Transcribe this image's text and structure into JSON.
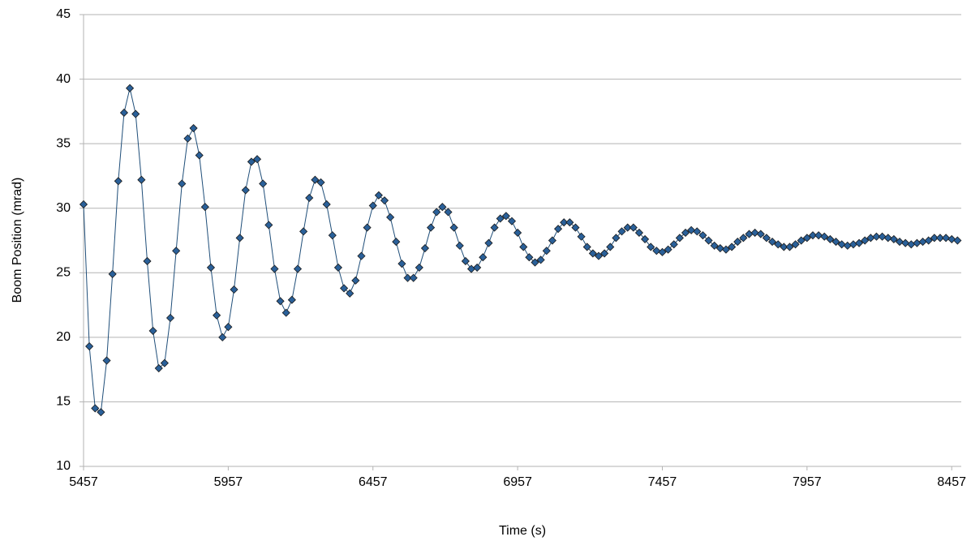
{
  "chart_data": {
    "type": "line",
    "x_label": "Time (s)",
    "y_label": "Boom Position (mrad)",
    "color": "#2a6099",
    "x": [
      5457,
      5477,
      5497,
      5517,
      5537,
      5557,
      5577,
      5597,
      5617,
      5637,
      5657,
      5677,
      5697,
      5717,
      5737,
      5757,
      5777,
      5797,
      5817,
      5837,
      5857,
      5877,
      5897,
      5917,
      5937,
      5957,
      5977,
      5997,
      6017,
      6037,
      6057,
      6077,
      6097,
      6117,
      6137,
      6157,
      6177,
      6197,
      6217,
      6237,
      6257,
      6277,
      6297,
      6317,
      6337,
      6357,
      6377,
      6397,
      6417,
      6437,
      6457,
      6477,
      6497,
      6517,
      6537,
      6557,
      6577,
      6597,
      6617,
      6637,
      6657,
      6677,
      6697,
      6717,
      6737,
      6757,
      6777,
      6797,
      6817,
      6837,
      6857,
      6877,
      6897,
      6917,
      6937,
      6957,
      6977,
      6997,
      7017,
      7037,
      7057,
      7077,
      7097,
      7117,
      7137,
      7157,
      7177,
      7197,
      7217,
      7237,
      7257,
      7277,
      7297,
      7317,
      7337,
      7357,
      7377,
      7397,
      7417,
      7437,
      7457,
      7477,
      7497,
      7517,
      7537,
      7557,
      7577,
      7597,
      7617,
      7637,
      7657,
      7677,
      7697,
      7717,
      7737,
      7757,
      7777,
      7797,
      7817,
      7837,
      7857,
      7877,
      7897,
      7917,
      7937,
      7957,
      7977,
      7997,
      8017,
      8037,
      8057,
      8077,
      8097,
      8117,
      8137,
      8157,
      8177,
      8197,
      8217,
      8237,
      8257,
      8277,
      8297,
      8317,
      8337,
      8357,
      8377,
      8397,
      8417,
      8437,
      8457,
      8477
    ],
    "values": [
      30.3,
      19.3,
      14.5,
      14.2,
      18.2,
      24.9,
      32.1,
      37.4,
      39.3,
      37.3,
      32.2,
      25.9,
      20.5,
      17.6,
      18.0,
      21.5,
      26.7,
      31.9,
      35.4,
      36.2,
      34.1,
      30.1,
      25.4,
      21.7,
      20.0,
      20.8,
      23.7,
      27.7,
      31.4,
      33.6,
      33.8,
      31.9,
      28.7,
      25.3,
      22.8,
      21.9,
      22.9,
      25.3,
      28.2,
      30.8,
      32.2,
      32.0,
      30.3,
      27.9,
      25.4,
      23.8,
      23.4,
      24.4,
      26.3,
      28.5,
      30.2,
      31.0,
      30.6,
      29.3,
      27.4,
      25.7,
      24.6,
      24.6,
      25.4,
      26.9,
      28.5,
      29.7,
      30.1,
      29.7,
      28.5,
      27.1,
      25.9,
      25.3,
      25.4,
      26.2,
      27.3,
      28.5,
      29.2,
      29.4,
      29.0,
      28.1,
      27.0,
      26.2,
      25.8,
      26.0,
      26.7,
      27.5,
      28.4,
      28.9,
      28.9,
      28.5,
      27.8,
      27.0,
      26.5,
      26.3,
      26.5,
      27.0,
      27.7,
      28.2,
      28.5,
      28.5,
      28.1,
      27.6,
      27.0,
      26.7,
      26.6,
      26.8,
      27.2,
      27.7,
      28.1,
      28.3,
      28.2,
      27.9,
      27.5,
      27.1,
      26.9,
      26.8,
      27.0,
      27.4,
      27.7,
      28.0,
      28.1,
      28.0,
      27.7,
      27.4,
      27.2,
      27.0,
      27.0,
      27.2,
      27.5,
      27.7,
      27.9,
      27.9,
      27.8,
      27.6,
      27.4,
      27.2,
      27.1,
      27.2,
      27.3,
      27.5,
      27.7,
      27.8,
      27.8,
      27.7,
      27.6,
      27.4,
      27.3,
      27.2,
      27.3,
      27.4,
      27.5,
      27.7,
      27.7,
      27.7,
      27.6,
      27.5
    ],
    "xlim": [
      5457,
      8490
    ],
    "xticks": [
      5457,
      5957,
      6457,
      6957,
      7457,
      7957,
      8457
    ],
    "ylim": [
      10,
      45
    ],
    "yticks": [
      10,
      15,
      20,
      25,
      30,
      35,
      40,
      45
    ],
    "grid": true
  }
}
